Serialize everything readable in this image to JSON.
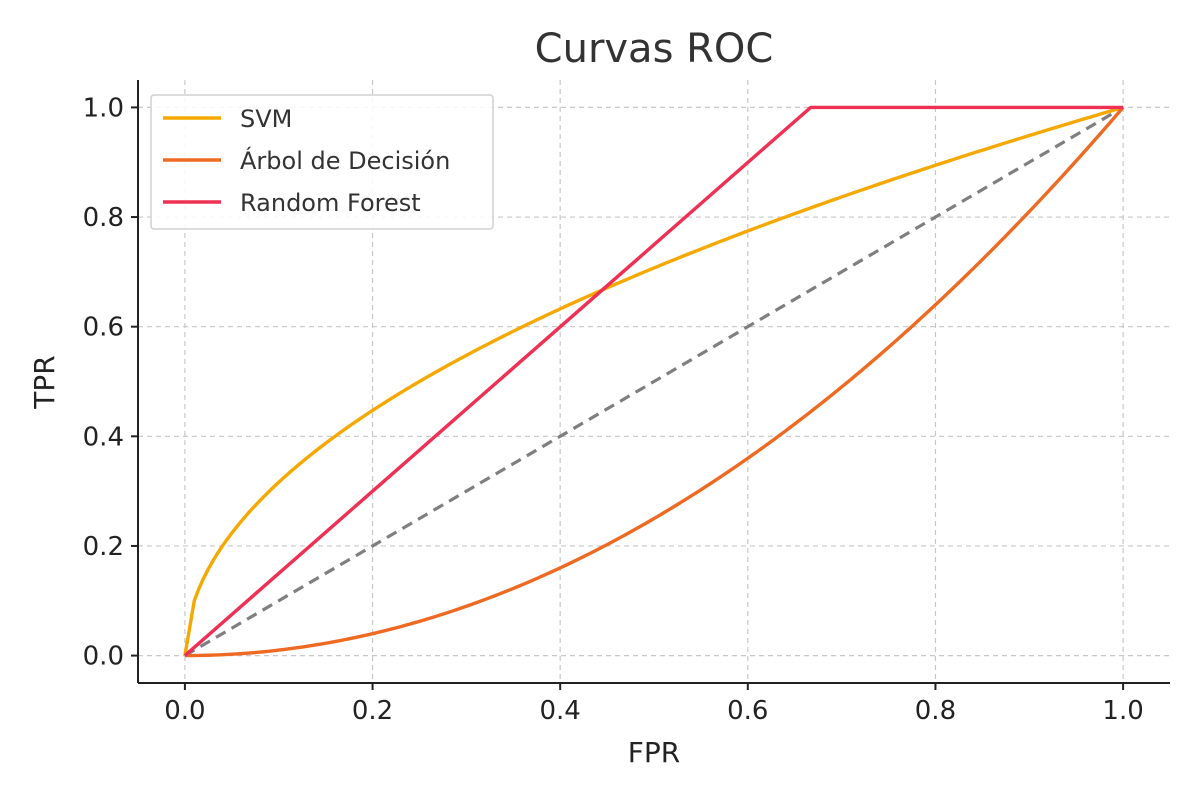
{
  "chart_data": {
    "type": "line",
    "title": "Curvas ROC",
    "xlabel": "FPR",
    "ylabel": "TPR",
    "xlim": [
      -0.05,
      1.05
    ],
    "ylim": [
      -0.05,
      1.05
    ],
    "xticks": [
      0.0,
      0.2,
      0.4,
      0.6,
      0.8,
      1.0
    ],
    "yticks": [
      0.0,
      0.2,
      0.4,
      0.6,
      0.8,
      1.0
    ],
    "xtick_labels": [
      "0.0",
      "0.2",
      "0.4",
      "0.6",
      "0.8",
      "1.0"
    ],
    "ytick_labels": [
      "0.0",
      "0.2",
      "0.4",
      "0.6",
      "0.8",
      "1.0"
    ],
    "grid": true,
    "legend_position": "top-left",
    "series": [
      {
        "name": "SVM",
        "color": "#F5A800",
        "x": [
          0.0,
          0.01,
          0.05,
          0.1,
          0.2,
          0.3,
          0.4,
          0.5,
          0.6,
          0.7,
          0.8,
          0.9,
          1.0
        ],
        "y": [
          0.0,
          0.1,
          0.224,
          0.316,
          0.447,
          0.548,
          0.632,
          0.707,
          0.775,
          0.837,
          0.894,
          0.949,
          1.0
        ]
      },
      {
        "name": "Árbol de Decisión",
        "color": "#EE6A22",
        "x": [
          0.0,
          0.1,
          0.2,
          0.3,
          0.4,
          0.5,
          0.6,
          0.7,
          0.8,
          0.9,
          1.0
        ],
        "y": [
          0.0,
          0.01,
          0.04,
          0.09,
          0.16,
          0.25,
          0.36,
          0.49,
          0.64,
          0.81,
          1.0
        ]
      },
      {
        "name": "Random Forest",
        "color": "#EE3054",
        "x": [
          0.0,
          0.667,
          1.0
        ],
        "y": [
          0.0,
          1.0,
          1.0
        ]
      }
    ],
    "reference_line": {
      "color": "#7F7F7F",
      "style": "dashed",
      "x": [
        0.0,
        1.0
      ],
      "y": [
        0.0,
        1.0
      ]
    }
  }
}
